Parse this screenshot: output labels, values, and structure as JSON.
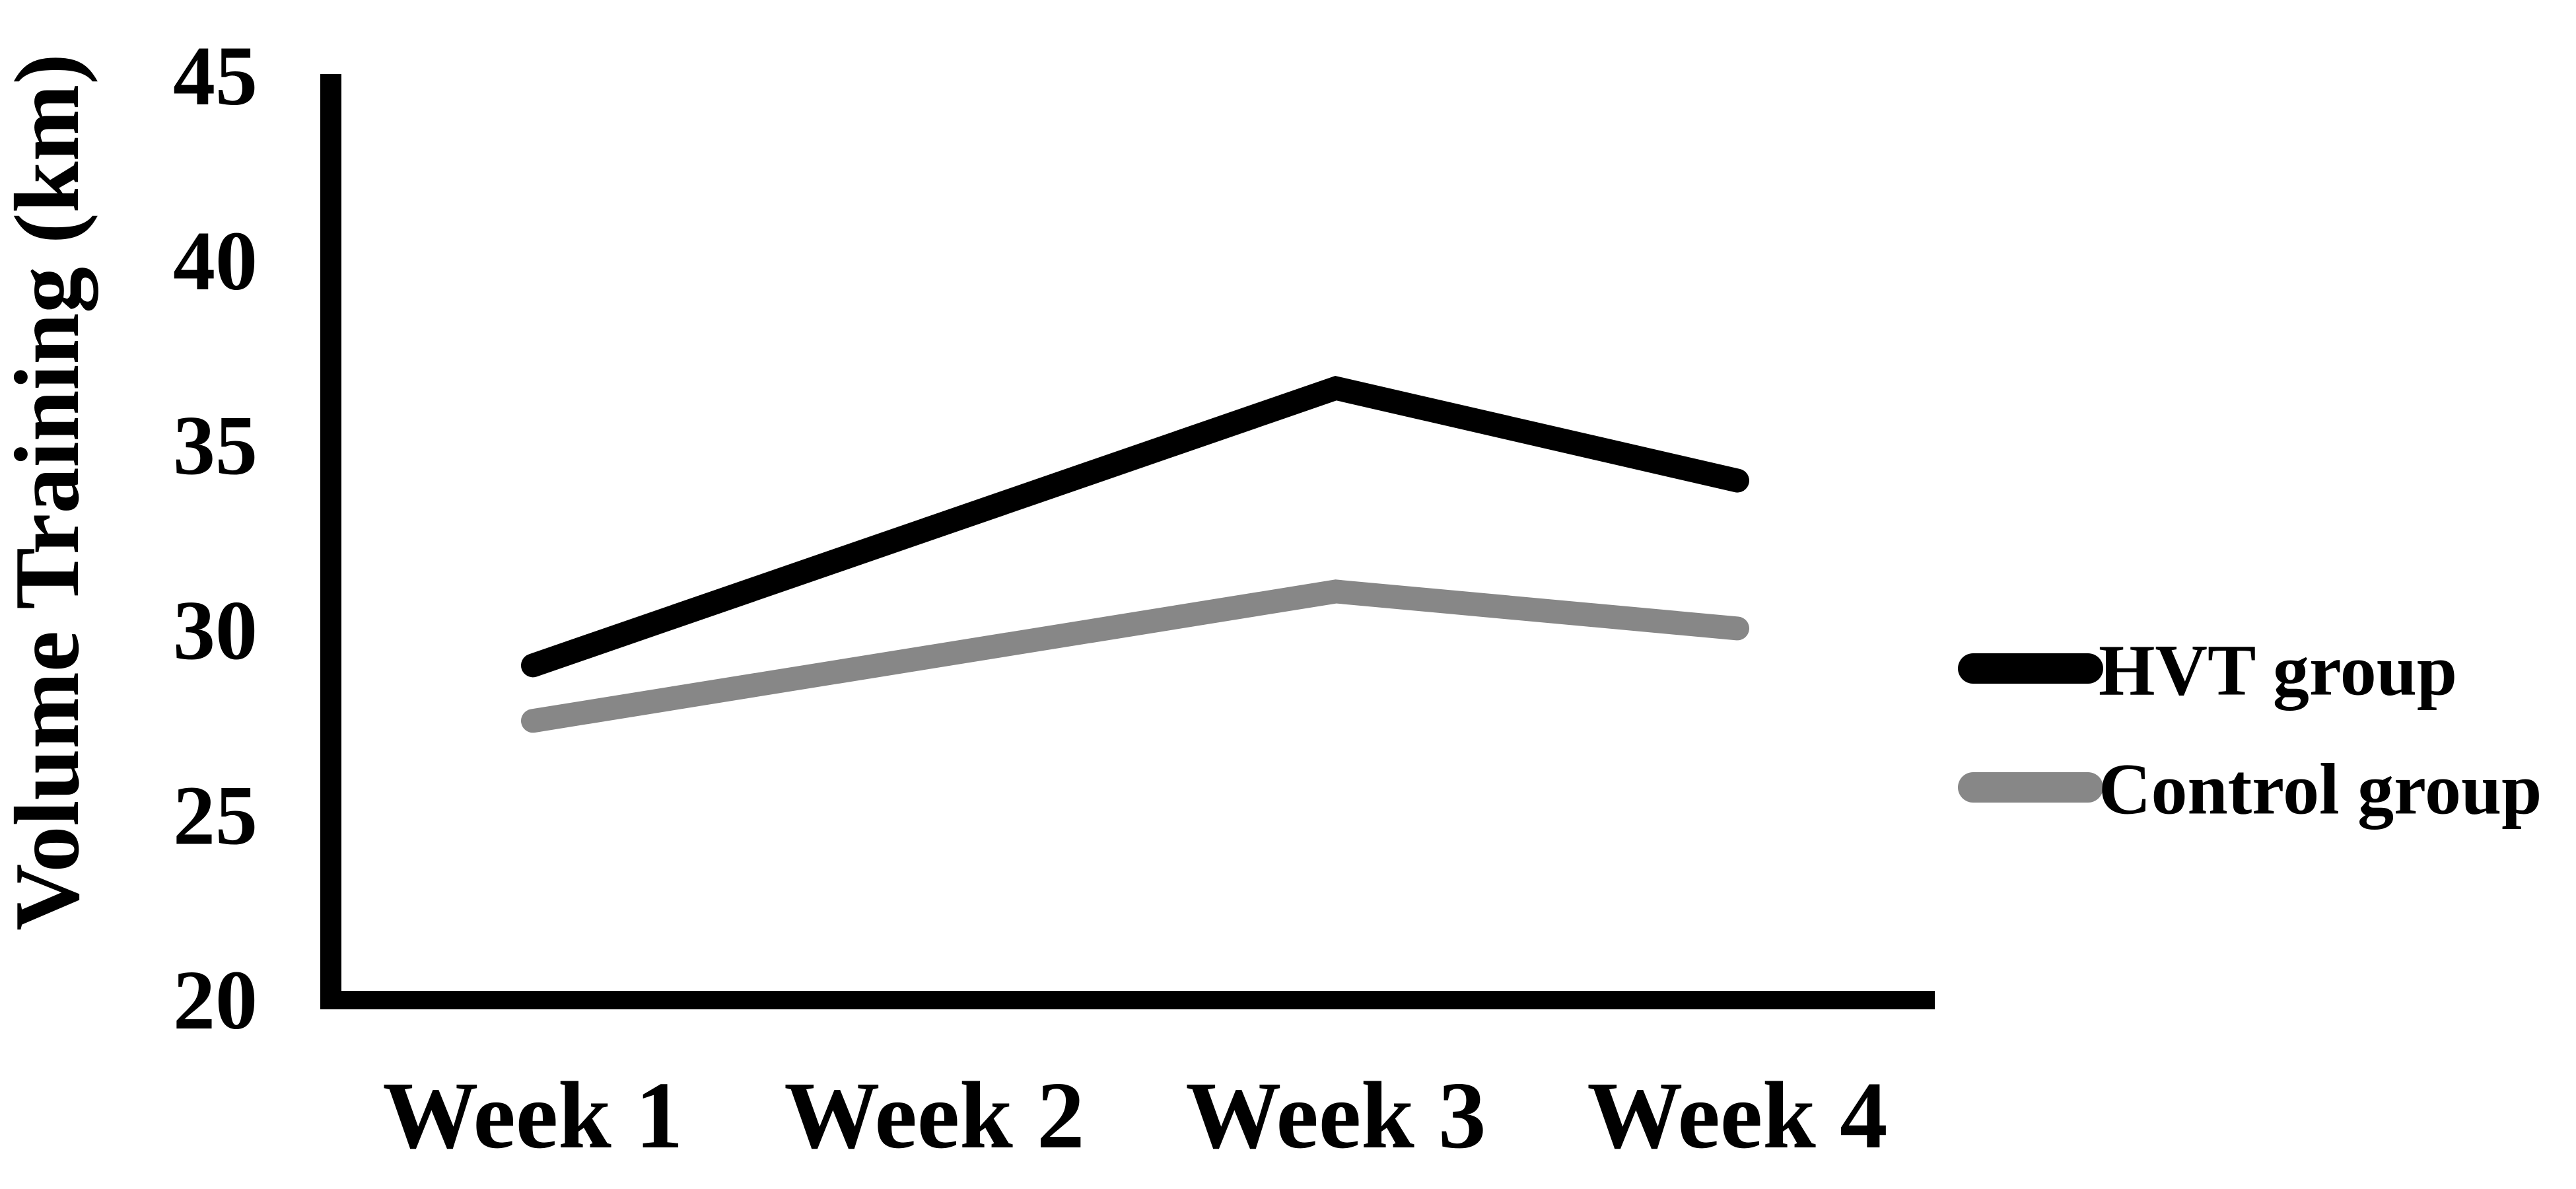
{
  "chart_data": {
    "type": "line",
    "title": "",
    "categories": [
      "Week 1",
      "Week 2",
      "Week 3",
      "Week 4"
    ],
    "series": [
      {
        "name": "HVT group",
        "color": "#000000",
        "values": [
          29,
          32.75,
          36.5,
          34
        ]
      },
      {
        "name": "Control group",
        "color": "#878787",
        "values": [
          27.5,
          29.25,
          31,
          30
        ]
      }
    ],
    "xlabel": "",
    "ylabel": "Volume Training (km)",
    "ylim": [
      20,
      45
    ],
    "yticks": [
      45,
      40,
      35,
      30,
      25,
      20
    ],
    "grid": false,
    "legend_position": "right"
  },
  "colors": {
    "background": "#ffffff",
    "axis": "#000000",
    "text": "#000000",
    "hvt_line": "#000000",
    "control_line": "#878787"
  }
}
